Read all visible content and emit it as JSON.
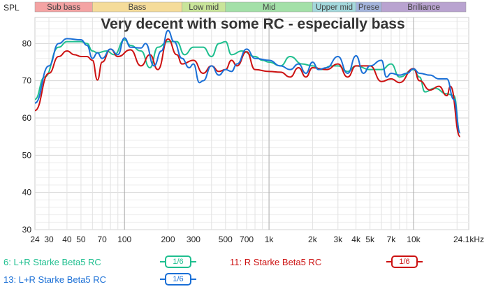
{
  "chart_data": {
    "type": "line",
    "title": "Very decent with some RC - especially bass",
    "ylabel": "SPL",
    "xlabel": "",
    "x_scale": "log",
    "xlim": [
      24,
      24100
    ],
    "ylim": [
      30,
      87
    ],
    "grid": true,
    "x_ticks": [
      {
        "v": 24,
        "l": "24"
      },
      {
        "v": 30,
        "l": "30"
      },
      {
        "v": 40,
        "l": "40"
      },
      {
        "v": 50,
        "l": "50"
      },
      {
        "v": 70,
        "l": "70"
      },
      {
        "v": 100,
        "l": "100"
      },
      {
        "v": 200,
        "l": "200"
      },
      {
        "v": 300,
        "l": "300"
      },
      {
        "v": 500,
        "l": "500"
      },
      {
        "v": 700,
        "l": "700"
      },
      {
        "v": 1000,
        "l": "1k"
      },
      {
        "v": 2000,
        "l": "2k"
      },
      {
        "v": 3000,
        "l": "3k"
      },
      {
        "v": 4000,
        "l": "4k"
      },
      {
        "v": 5000,
        "l": "5k"
      },
      {
        "v": 7000,
        "l": "7k"
      },
      {
        "v": 10000,
        "l": "10k"
      },
      {
        "v": 24100,
        "l": "24.1kHz"
      }
    ],
    "y_ticks": [
      30,
      40,
      50,
      60,
      70,
      80
    ],
    "bands": [
      {
        "name": "Sub bass",
        "from": 24,
        "to": 60,
        "color": "#f4a3a3"
      },
      {
        "name": "Bass",
        "from": 60,
        "to": 250,
        "color": "#f5dc9a"
      },
      {
        "name": "Low mid",
        "from": 250,
        "to": 500,
        "color": "#c9e59a"
      },
      {
        "name": "Mid",
        "from": 500,
        "to": 2000,
        "color": "#a3e0a8"
      },
      {
        "name": "Upper mid",
        "from": 2000,
        "to": 4000,
        "color": "#a3d8dc"
      },
      {
        "name": "Presence",
        "label": "Prese",
        "from": 4000,
        "to": 6000,
        "color": "#a3b4dc"
      },
      {
        "name": "Brilliance",
        "from": 6000,
        "to": 24100,
        "color": "#b9a3d0"
      }
    ],
    "series": [
      {
        "name": "6: L+R Starke Beta5 RC",
        "smoothing": "1/6",
        "color": "#1fbf8f",
        "x": [
          24,
          28,
          35,
          40,
          50,
          55,
          60,
          65,
          75,
          85,
          100,
          110,
          130,
          150,
          170,
          200,
          230,
          260,
          300,
          350,
          400,
          450,
          500,
          550,
          650,
          800,
          900,
          1000,
          1200,
          1400,
          1700,
          2000,
          2300,
          2700,
          3000,
          3500,
          4000,
          5000,
          6000,
          7000,
          8000,
          10000,
          11000,
          12000,
          14000,
          17000,
          19000,
          21000
        ],
        "y": [
          65,
          71,
          79,
          80.5,
          80.5,
          80,
          78,
          77.5,
          78,
          77,
          81,
          79.5,
          78,
          73.5,
          79,
          80.5,
          80.5,
          77,
          79,
          79,
          76.5,
          80,
          80.5,
          77,
          78,
          76.5,
          75.5,
          75,
          74,
          76.5,
          74.5,
          74,
          73,
          74,
          74,
          72.5,
          74,
          73,
          73,
          74.5,
          71,
          73,
          71,
          67,
          68,
          66.5,
          66,
          56
        ]
      },
      {
        "name": "11: R Starke Beta5 RC",
        "smoothing": "1/6",
        "color": "#cc1111",
        "x": [
          24,
          30,
          35,
          40,
          45,
          50,
          55,
          60,
          65,
          70,
          80,
          90,
          110,
          130,
          150,
          170,
          200,
          230,
          250,
          300,
          350,
          400,
          450,
          500,
          550,
          600,
          700,
          800,
          1000,
          1200,
          1400,
          1600,
          1800,
          2000,
          2500,
          3000,
          3500,
          4000,
          5000,
          6000,
          7000,
          8000,
          10000,
          11000,
          13000,
          15000,
          17000,
          18000,
          21000
        ],
        "y": [
          62,
          72,
          76.5,
          78,
          77,
          76.5,
          76.5,
          75.5,
          70.2,
          75,
          78.5,
          76.5,
          78.3,
          74,
          77,
          73,
          81.2,
          77,
          74.5,
          75.5,
          72,
          74,
          72.5,
          73,
          75.5,
          74,
          77.8,
          73,
          72.5,
          72.3,
          71,
          73.5,
          71,
          73.5,
          73,
          74.5,
          71,
          74,
          74,
          69.8,
          70.5,
          69.5,
          73.3,
          70,
          67.5,
          68.5,
          66,
          68.5,
          55
        ]
      },
      {
        "name": "13: L+R Starke Beta5 RC",
        "smoothing": "1/6",
        "color": "#1a6fd6",
        "x": [
          24,
          30,
          35,
          40,
          50,
          55,
          60,
          65,
          70,
          80,
          90,
          100,
          110,
          130,
          140,
          160,
          180,
          200,
          220,
          250,
          280,
          300,
          330,
          350,
          400,
          450,
          500,
          550,
          600,
          700,
          800,
          1000,
          1200,
          1400,
          1600,
          1800,
          2000,
          2200,
          2500,
          3000,
          3500,
          4000,
          4500,
          5000,
          6000,
          6500,
          7000,
          8000,
          9000,
          10000,
          11000,
          13000,
          15000,
          17000,
          19000,
          21000
        ],
        "y": [
          64,
          74,
          80,
          81.3,
          81,
          79.5,
          76,
          77.5,
          76,
          78.5,
          77,
          81.5,
          79,
          78.8,
          80,
          74,
          78,
          83.5,
          80.5,
          76,
          73.5,
          74.5,
          69.5,
          70,
          74,
          71.5,
          73,
          72.5,
          74.5,
          78.5,
          76,
          75.5,
          74,
          73,
          74.5,
          72,
          75,
          73,
          73.5,
          76.5,
          72,
          76.7,
          72,
          74,
          75.5,
          71,
          72,
          71.5,
          72,
          73.2,
          72,
          71.5,
          70.5,
          70.5,
          65,
          56
        ]
      }
    ]
  }
}
